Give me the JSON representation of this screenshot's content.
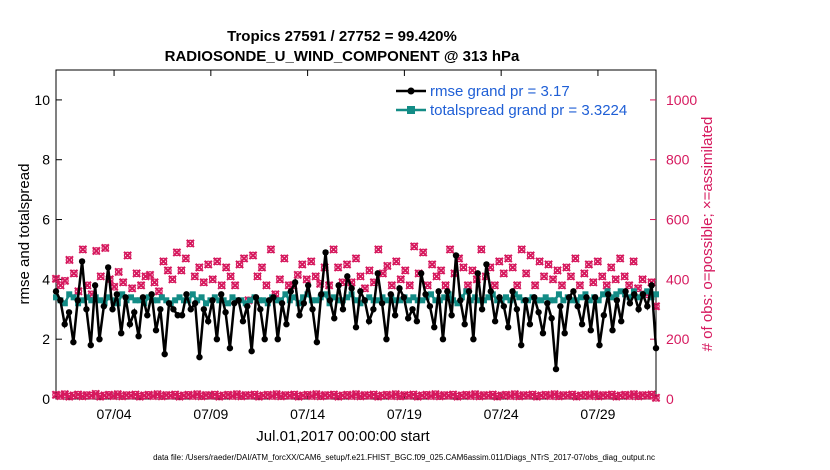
{
  "chart_data": {
    "type": "line",
    "title_line1": "Tropics 27591 / 27752 = 99.420%",
    "title_line2": "RADIOSONDE_U_WIND_COMPONENT @ 313 hPa",
    "xlabel": "Jul.01,2017 00:00:00 start",
    "ylabel_left": "rmse and totalspread",
    "ylabel_right": "# of obs: o=possible; ×=assimilated",
    "ylim_left": [
      0,
      11
    ],
    "ylim_right": [
      0,
      1100
    ],
    "xlim_days": [
      0,
      31
    ],
    "x_ticks": [
      {
        "day": 3,
        "label": "07/04"
      },
      {
        "day": 8,
        "label": "07/09"
      },
      {
        "day": 13,
        "label": "07/14"
      },
      {
        "day": 18,
        "label": "07/19"
      },
      {
        "day": 23,
        "label": "07/24"
      },
      {
        "day": 28,
        "label": "07/29"
      }
    ],
    "y_ticks_left": [
      "0",
      "2",
      "4",
      "6",
      "8",
      "10"
    ],
    "y_ticks_left_values": [
      0,
      2,
      4,
      6,
      8,
      10
    ],
    "y_ticks_right": [
      "0",
      "200",
      "400",
      "600",
      "800",
      "1000"
    ],
    "y_ticks_right_values": [
      0,
      200,
      400,
      600,
      800,
      1000
    ],
    "colors": {
      "rmse": "#000000",
      "spread": "#138c86",
      "obs": "#d6195e",
      "legend_text": "#1f5fd6"
    },
    "series": [
      {
        "name": "rmse",
        "legend": "rmse grand pr = 3.17",
        "values": [
          3.6,
          3.3,
          2.5,
          2.9,
          1.9,
          3.3,
          4.6,
          3.0,
          1.8,
          3.8,
          2.0,
          3.1,
          4.4,
          3.0,
          3.5,
          2.2,
          3.4,
          2.5,
          2.9,
          2.1,
          3.4,
          2.8,
          3.5,
          2.3,
          3.0,
          1.5,
          3.2,
          3.0,
          2.8,
          2.8,
          3.5,
          3.0,
          3.2,
          1.4,
          3.0,
          2.6,
          3.3,
          2.0,
          3.5,
          2.9,
          1.7,
          3.2,
          3.3,
          2.6,
          3.1,
          1.6,
          3.4,
          3.0,
          2.0,
          3.3,
          3.4,
          2.0,
          3.2,
          2.5,
          3.6,
          3.9,
          2.8,
          3.2,
          3.8,
          3.0,
          1.9,
          3.5,
          4.9,
          3.3,
          2.7,
          3.8,
          3.0,
          4.1,
          3.7,
          2.4,
          3.6,
          3.3,
          2.6,
          3.0,
          4.2,
          3.2,
          2.0,
          3.5,
          2.8,
          3.7,
          3.4,
          2.7,
          3.0,
          2.6,
          4.2,
          3.5,
          3.1,
          2.4,
          3.6,
          2.0,
          3.6,
          2.8,
          4.8,
          3.3,
          2.5,
          3.6,
          2.0,
          4.2,
          3.0,
          4.5,
          3.6,
          2.6,
          3.4,
          3.1,
          2.4,
          3.6,
          3.0,
          1.8,
          3.3,
          2.5,
          3.4,
          2.9,
          2.2,
          3.2,
          2.7,
          1.0,
          3.1,
          2.2,
          3.4,
          3.6,
          3.1,
          2.5,
          3.4,
          2.3,
          3.4,
          1.8,
          2.8,
          3.5,
          2.3,
          3.3,
          2.6,
          3.6,
          3.2,
          3.5,
          3.0,
          3.5,
          3.1,
          3.8,
          1.7
        ]
      },
      {
        "name": "totalspread",
        "legend": "totalspread grand pr = 3.3224",
        "values": [
          3.4,
          3.3,
          3.2,
          3.5,
          3.4,
          3.2,
          3.3,
          3.4,
          3.3,
          3.4,
          3.3,
          3.2,
          3.4,
          3.3,
          3.2,
          3.5,
          3.3,
          3.4,
          3.3,
          3.3,
          3.2,
          3.4,
          3.3,
          3.3,
          3.4,
          3.3,
          3.2,
          3.3,
          3.4,
          3.3,
          3.3,
          3.5,
          3.3,
          3.4,
          3.2,
          3.3,
          3.4,
          3.3,
          3.3,
          3.2,
          3.4,
          3.3,
          3.3,
          3.2,
          3.3,
          3.4,
          3.3,
          3.3,
          3.2,
          3.4,
          3.3,
          3.3,
          3.5,
          3.3,
          3.4,
          3.2,
          3.4,
          3.5,
          3.3,
          3.3,
          3.4,
          3.5,
          3.2,
          3.4,
          3.3,
          3.3,
          3.4,
          3.5,
          3.3,
          3.2,
          3.3,
          3.4,
          3.3,
          3.3,
          3.4,
          3.3,
          3.4,
          3.3,
          3.3,
          3.4,
          3.3,
          3.4,
          3.3,
          3.3,
          3.4,
          3.5,
          3.3,
          3.3,
          3.4,
          3.5,
          3.3,
          3.2,
          3.4,
          3.6,
          3.3,
          3.4,
          3.3,
          3.3,
          3.4,
          3.5,
          3.3,
          3.3,
          3.4,
          3.3,
          3.5,
          3.4,
          3.3,
          3.3,
          3.4,
          3.3,
          3.3,
          3.4,
          3.3,
          3.3,
          3.5,
          3.3,
          3.4,
          3.3,
          3.3,
          3.4,
          3.5,
          3.3,
          3.4,
          3.3,
          3.5,
          3.6,
          3.4,
          3.5,
          3.6,
          3.5,
          3.4,
          3.6,
          3.4,
          3.5,
          3.6,
          3.4,
          3.5
        ]
      },
      {
        "name": "obs_possible",
        "marker": "o",
        "values": [
          402,
          380,
          395,
          465,
          420,
          360,
          500,
          380,
          350,
          495,
          410,
          505,
          400,
          375,
          425,
          390,
          480,
          370,
          420,
          380,
          410,
          415,
          390,
          360,
          460,
          430,
          400,
          490,
          430,
          470,
          520,
          410,
          440,
          390,
          450,
          400,
          460,
          380,
          440,
          410,
          380,
          450,
          470,
          330,
          480,
          410,
          440,
          380,
          500,
          350,
          400,
          470,
          380,
          380,
          415,
          450,
          400,
          460,
          410,
          385,
          440,
          380,
          500,
          440,
          390,
          450,
          390,
          470,
          410,
          370,
          430,
          390,
          500,
          420,
          445,
          380,
          460,
          400,
          430,
          380,
          510,
          420,
          490,
          380,
          450,
          410,
          430,
          380,
          500,
          420,
          470,
          440,
          380,
          430,
          400,
          500,
          410,
          440,
          380,
          460,
          420,
          470,
          440,
          380,
          500,
          420,
          480,
          380,
          460,
          410,
          450,
          400,
          430,
          380,
          440,
          410,
          470,
          380,
          420,
          450,
          390,
          460,
          410,
          380,
          440,
          400,
          470,
          410,
          380,
          460,
          370,
          400,
          350,
          390,
          310
        ]
      },
      {
        "name": "obs_assimilated",
        "marker": "x",
        "values": [
          402,
          380,
          395,
          465,
          420,
          360,
          500,
          380,
          350,
          495,
          410,
          505,
          400,
          375,
          425,
          390,
          480,
          370,
          420,
          380,
          410,
          415,
          390,
          360,
          460,
          430,
          400,
          490,
          430,
          470,
          520,
          410,
          440,
          390,
          450,
          400,
          460,
          380,
          440,
          410,
          380,
          450,
          470,
          330,
          480,
          410,
          440,
          380,
          500,
          350,
          400,
          470,
          380,
          380,
          415,
          450,
          400,
          460,
          410,
          385,
          440,
          380,
          500,
          440,
          390,
          450,
          390,
          470,
          410,
          370,
          430,
          390,
          500,
          420,
          445,
          380,
          460,
          400,
          430,
          380,
          510,
          420,
          490,
          380,
          450,
          410,
          430,
          380,
          500,
          420,
          470,
          440,
          380,
          430,
          400,
          500,
          410,
          440,
          380,
          460,
          420,
          470,
          440,
          380,
          500,
          420,
          480,
          380,
          460,
          410,
          450,
          400,
          430,
          380,
          440,
          410,
          470,
          380,
          420,
          450,
          390,
          460,
          410,
          380,
          440,
          400,
          470,
          410,
          380,
          460,
          370,
          400,
          350,
          390,
          310
        ]
      },
      {
        "name": "obs_low_possible",
        "marker": "o",
        "values": [
          14,
          10,
          16,
          8,
          12,
          15,
          9,
          13,
          11,
          17,
          8,
          12,
          14,
          10,
          16,
          9,
          13,
          11,
          15,
          8,
          12,
          14,
          10,
          16,
          9,
          13,
          11,
          15,
          8,
          12,
          14,
          10,
          16,
          9,
          13,
          11,
          15,
          8,
          12,
          14,
          10,
          16,
          9,
          13,
          11,
          15,
          8,
          12,
          14,
          10,
          16,
          9,
          13,
          11,
          15,
          8,
          12,
          14,
          10,
          16,
          9,
          13,
          11,
          15,
          8,
          12,
          14,
          10,
          16,
          9,
          13,
          11,
          15,
          8,
          12,
          14,
          10,
          16,
          9,
          13,
          11,
          15,
          8,
          12,
          14,
          10,
          16,
          9,
          13,
          11,
          15,
          8,
          12,
          14,
          10,
          16,
          9,
          13,
          11,
          15,
          8,
          12,
          14,
          10,
          16,
          9,
          13,
          11,
          15,
          8,
          12,
          14,
          10,
          16,
          9,
          13,
          11,
          15,
          8,
          12,
          14,
          10,
          16,
          9,
          13,
          11,
          15,
          8,
          12,
          14,
          10,
          16,
          9,
          13,
          11,
          15,
          4
        ]
      },
      {
        "name": "obs_low_assimilated",
        "marker": "x",
        "values": [
          14,
          10,
          16,
          8,
          12,
          15,
          9,
          13,
          11,
          17,
          8,
          12,
          14,
          10,
          16,
          9,
          13,
          11,
          15,
          8,
          12,
          14,
          10,
          16,
          9,
          13,
          11,
          15,
          8,
          12,
          14,
          10,
          16,
          9,
          13,
          11,
          15,
          8,
          12,
          14,
          10,
          16,
          9,
          13,
          11,
          15,
          8,
          12,
          14,
          10,
          16,
          9,
          13,
          11,
          15,
          8,
          12,
          14,
          10,
          16,
          9,
          13,
          11,
          15,
          8,
          12,
          14,
          10,
          16,
          9,
          13,
          11,
          15,
          8,
          12,
          14,
          10,
          16,
          9,
          13,
          11,
          15,
          8,
          12,
          14,
          10,
          16,
          9,
          13,
          11,
          15,
          8,
          12,
          14,
          10,
          16,
          9,
          13,
          11,
          15,
          8,
          12,
          14,
          10,
          16,
          9,
          13,
          11,
          15,
          8,
          12,
          14,
          10,
          16,
          9,
          13,
          11,
          15,
          8,
          12,
          14,
          10,
          16,
          9,
          13,
          11,
          15,
          8,
          12,
          14,
          10,
          16,
          9,
          13,
          11,
          15,
          4
        ]
      }
    ]
  },
  "footer": "data file: /Users/raeder/DAI/ATM_forcXX/CAM6_setup/f.e21.FHIST_BGC.f09_025.CAM6assim.011/Diags_NTrS_2017-07/obs_diag_output.nc"
}
